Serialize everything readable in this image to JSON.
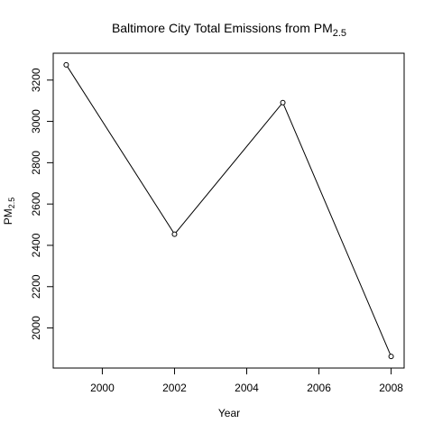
{
  "chart_data": {
    "type": "line",
    "title": "Baltimore City Total Emissions from PM",
    "title_subscript": "2.5",
    "xlabel": "Year",
    "ylabel": "PM",
    "ylabel_subscript": "2.5",
    "x": [
      1999,
      2002,
      2005,
      2008
    ],
    "y": [
      3274,
      2454,
      3091,
      1862
    ],
    "xlim": [
      1998.64,
      2008.36
    ],
    "ylim": [
      1806,
      3330
    ],
    "xticks": [
      2000,
      2002,
      2004,
      2006,
      2008
    ],
    "yticks": [
      2000,
      2200,
      2400,
      2600,
      2800,
      3000,
      3200
    ],
    "markers": "open-circle",
    "line_color": "#000000",
    "grid": false,
    "legend": "none"
  }
}
